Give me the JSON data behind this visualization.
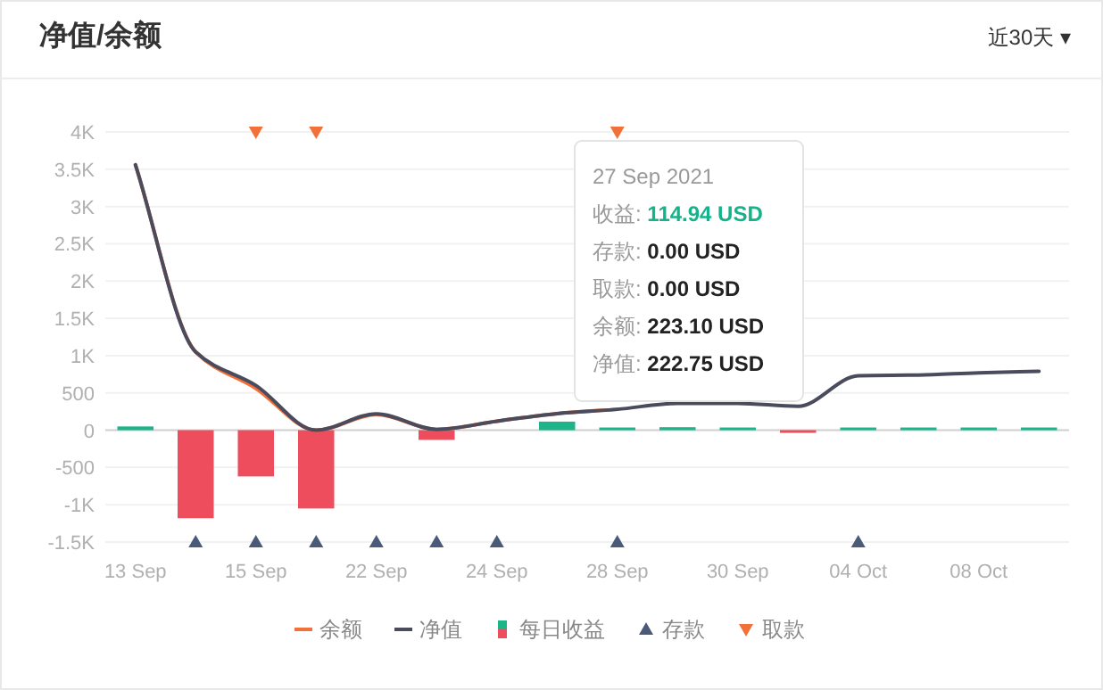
{
  "chart_data": {
    "type": "bar",
    "title": "净值/余额",
    "annotations": [
      "近30天 ▾",
      "27 Sep 2021",
      "收益: 114.94 USD",
      "存款: 0.00 USD",
      "取款: 0.00 USD",
      "余额: 223.10 USD",
      "净值: 222.75 USD"
    ],
    "categories": [
      "13 Sep",
      null,
      "15 Sep",
      null,
      "22 Sep",
      null,
      "24 Sep",
      null,
      "28 Sep",
      null,
      "30 Sep",
      null,
      "04 Oct",
      null,
      "08 Oct",
      null
    ],
    "series": [
      {
        "name": "余额",
        "type": "line",
        "color": "#f2703a",
        "values": [
          3560,
          1050,
          560,
          0,
          210,
          10,
          120,
          223.1,
          280,
          null,
          null,
          null,
          null,
          null,
          null,
          null
        ]
      },
      {
        "name": "净值",
        "type": "line",
        "color": "#4a4c5e",
        "values": [
          3560,
          1050,
          600,
          0,
          220,
          10,
          120,
          222.75,
          280,
          360,
          360,
          320,
          730,
          740,
          770,
          790
        ]
      },
      {
        "name": "每日收益",
        "colors": [
          "#1db48a",
          "#ee4d5d",
          "#ee4d5d",
          "#ee4d5d",
          "#1db48a",
          "#ee4d5d",
          "#1db48a",
          "#1db48a",
          "#1db48a",
          "#1db48a",
          "#1db48a",
          "#ee4d5d",
          "#1db48a",
          "#1db48a",
          "#1db48a",
          "#1db48a"
        ],
        "color": "#1db48a",
        "values": [
          50,
          -1180,
          -620,
          -1050,
          0,
          -130,
          0,
          114.94,
          20,
          40,
          10,
          -10,
          20,
          10,
          10,
          10
        ]
      },
      {
        "name": "存款",
        "type": "scatter",
        "marker": "triangle",
        "color": "#4a5a78",
        "values": [
          null,
          -1500,
          -1500,
          -1500,
          -1500,
          -1500,
          -1500,
          null,
          -1500,
          null,
          null,
          null,
          -1500,
          null,
          null,
          null
        ]
      },
      {
        "name": "取款",
        "type": "scatter",
        "marker": "triangle-down",
        "color": "#f2703a",
        "values": [
          null,
          null,
          4000,
          4000,
          null,
          null,
          null,
          null,
          4000,
          null,
          null,
          null,
          null,
          null,
          null,
          null
        ]
      }
    ],
    "ylim": [
      -1500,
      4000
    ],
    "yticks": [
      {
        "value": -1500,
        "label": "-1.5K"
      },
      {
        "value": -1000,
        "label": "-1K"
      },
      -500,
      0,
      500,
      {
        "value": 1000,
        "label": "1K"
      },
      {
        "value": 1500,
        "label": "1.5K"
      },
      {
        "value": 2000,
        "label": "2K"
      },
      {
        "value": 2500,
        "label": "2.5K"
      },
      {
        "value": 3000,
        "label": "3K"
      },
      {
        "value": 3500,
        "label": "3.5K"
      },
      {
        "value": 4000,
        "label": "4K"
      }
    ],
    "grid": "y",
    "legend": "bottom"
  }
}
